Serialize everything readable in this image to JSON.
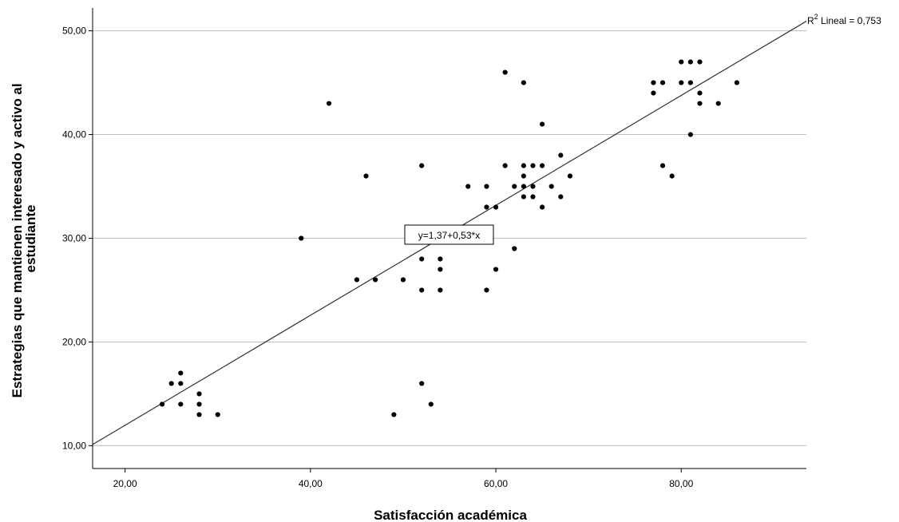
{
  "chart_data": {
    "type": "scatter",
    "xlabel": "Satisfacción académica",
    "ylabel_lines": [
      "Estrategias que mantienen interesado y activo al",
      "estudiante"
    ],
    "xlim": [
      16.5,
      93.5
    ],
    "ylim": [
      7.8,
      52.2
    ],
    "x_ticks": [
      20,
      40,
      60,
      80
    ],
    "y_ticks": [
      10,
      20,
      30,
      40,
      50
    ],
    "x_tick_labels": [
      "20,00",
      "40,00",
      "60,00",
      "80,00"
    ],
    "y_tick_labels": [
      "10,00",
      "20,00",
      "30,00",
      "40,00",
      "50,00"
    ],
    "grid": "horizontal",
    "fit_line": {
      "intercept": 1.37,
      "slope": 0.53
    },
    "equation_label": "y=1,37+0,53*x",
    "r2_label": {
      "prefix": "R",
      "superscript": "2",
      "suffix": " Lineal = 0,753"
    },
    "colors": {
      "points": "#000000",
      "gridlines": "#bdbdbd",
      "fit_line": "#333333",
      "axis": "#000000"
    },
    "points": [
      [
        24,
        14
      ],
      [
        25,
        16
      ],
      [
        26,
        17
      ],
      [
        26,
        16
      ],
      [
        26,
        14
      ],
      [
        28,
        15
      ],
      [
        28,
        14
      ],
      [
        28,
        13
      ],
      [
        30,
        13
      ],
      [
        39,
        30
      ],
      [
        42,
        43
      ],
      [
        45,
        26
      ],
      [
        46,
        36
      ],
      [
        47,
        26
      ],
      [
        49,
        13
      ],
      [
        50,
        26
      ],
      [
        52,
        37
      ],
      [
        52,
        28
      ],
      [
        52,
        25
      ],
      [
        52,
        16
      ],
      [
        53,
        14
      ],
      [
        54,
        28
      ],
      [
        54,
        27
      ],
      [
        54,
        25
      ],
      [
        57,
        35
      ],
      [
        59,
        35
      ],
      [
        59,
        33
      ],
      [
        59,
        25
      ],
      [
        60,
        33
      ],
      [
        60,
        27
      ],
      [
        61,
        46
      ],
      [
        61,
        37
      ],
      [
        62,
        35
      ],
      [
        62,
        29
      ],
      [
        63,
        45
      ],
      [
        63,
        37
      ],
      [
        63,
        36
      ],
      [
        63,
        35
      ],
      [
        63,
        34
      ],
      [
        64,
        37
      ],
      [
        64,
        35
      ],
      [
        64,
        34
      ],
      [
        65,
        41
      ],
      [
        65,
        37
      ],
      [
        65,
        33
      ],
      [
        66,
        35
      ],
      [
        67,
        38
      ],
      [
        67,
        34
      ],
      [
        68,
        36
      ],
      [
        77,
        45
      ],
      [
        77,
        44
      ],
      [
        78,
        45
      ],
      [
        78,
        37
      ],
      [
        79,
        36
      ],
      [
        80,
        47
      ],
      [
        80,
        45
      ],
      [
        81,
        47
      ],
      [
        81,
        45
      ],
      [
        81,
        40
      ],
      [
        82,
        47
      ],
      [
        82,
        44
      ],
      [
        82,
        43
      ],
      [
        84,
        43
      ],
      [
        86,
        45
      ]
    ]
  }
}
